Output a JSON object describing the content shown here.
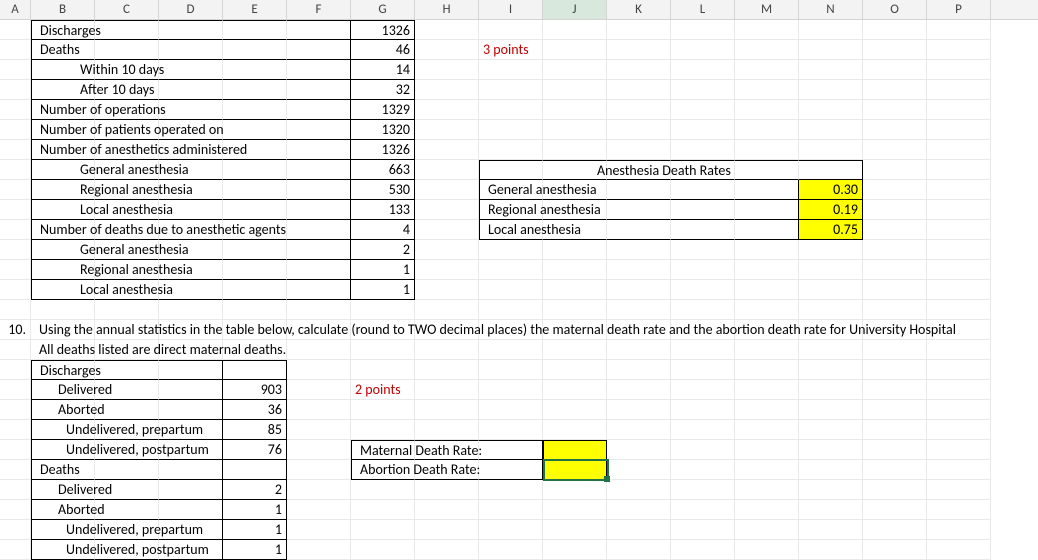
{
  "columns": {
    "letters": [
      "A",
      "B",
      "C",
      "D",
      "E",
      "F",
      "G",
      "H",
      "I",
      "J",
      "K",
      "L",
      "M",
      "N",
      "O",
      "P"
    ],
    "widths": [
      31,
      64,
      64,
      64,
      64,
      64,
      64,
      64,
      64,
      64,
      64,
      64,
      64,
      64,
      64,
      64
    ]
  },
  "colors": {
    "red": "#c00000",
    "yellow": "#ffff00",
    "selection": "#217346"
  },
  "table1": {
    "rows": [
      {
        "label": "Discharges",
        "value": "1326"
      },
      {
        "label": "Deaths",
        "value": "46",
        "note": "3 points"
      },
      {
        "label": "Within 10 days",
        "value": "14",
        "indent": "indent1"
      },
      {
        "label": "After 10 days",
        "value": "32",
        "indent": "indent1"
      },
      {
        "label": "Number of operations",
        "value": "1329"
      },
      {
        "label": "Number of patients operated on",
        "value": "1320"
      },
      {
        "label": "Number of anesthetics administered",
        "value": "1326"
      },
      {
        "label": "General anesthesia",
        "value": "663",
        "indent": "indent1"
      },
      {
        "label": "Regional anesthesia",
        "value": "530",
        "indent": "indent1"
      },
      {
        "label": "Local anesthesia",
        "value": "133",
        "indent": "indent1"
      },
      {
        "label": "Number of deaths due to anesthetic agents",
        "value": "4"
      },
      {
        "label": "General anesthesia",
        "value": "2",
        "indent": "indent1"
      },
      {
        "label": "Regional anesthesia",
        "value": "1",
        "indent": "indent1"
      },
      {
        "label": "Local anesthesia",
        "value": "1",
        "indent": "indent1"
      }
    ]
  },
  "rates": {
    "title": "Anesthesia Death Rates",
    "rows": [
      {
        "label": "General anesthesia",
        "value": "0.30"
      },
      {
        "label": "Regional anesthesia",
        "value": "0.19"
      },
      {
        "label": "Local anesthesia",
        "value": "0.75"
      }
    ]
  },
  "question10": {
    "number": "10.",
    "text": "Using the annual statistics in the table below, calculate (round to TWO decimal places) the maternal death rate and the abortion death rate for University Hospital",
    "subtext": "All deaths listed are direct maternal deaths."
  },
  "table2": {
    "rows": [
      {
        "label": "Discharges",
        "value": "",
        "header": true
      },
      {
        "label": "Delivered",
        "value": "903",
        "indent": "indent1",
        "note": "2 points"
      },
      {
        "label": "Aborted",
        "value": "36",
        "indent": "indent1"
      },
      {
        "label": "Undelivered, prepartum",
        "value": "85",
        "indent": "indent2"
      },
      {
        "label": "Undelivered, postpartum",
        "value": "76",
        "indent": "indent2"
      },
      {
        "label": "Deaths",
        "value": "",
        "header": true
      },
      {
        "label": "Delivered",
        "value": "2",
        "indent": "indent1"
      },
      {
        "label": "Aborted",
        "value": "1",
        "indent": "indent1"
      },
      {
        "label": "Undelivered, prepartum",
        "value": "1",
        "indent": "indent2"
      },
      {
        "label": "Undelivered, postpartum",
        "value": "1",
        "indent": "indent2"
      }
    ]
  },
  "rateLabels": {
    "maternal": "Maternal Death Rate:",
    "abortion": "Abortion Death Rate:"
  }
}
